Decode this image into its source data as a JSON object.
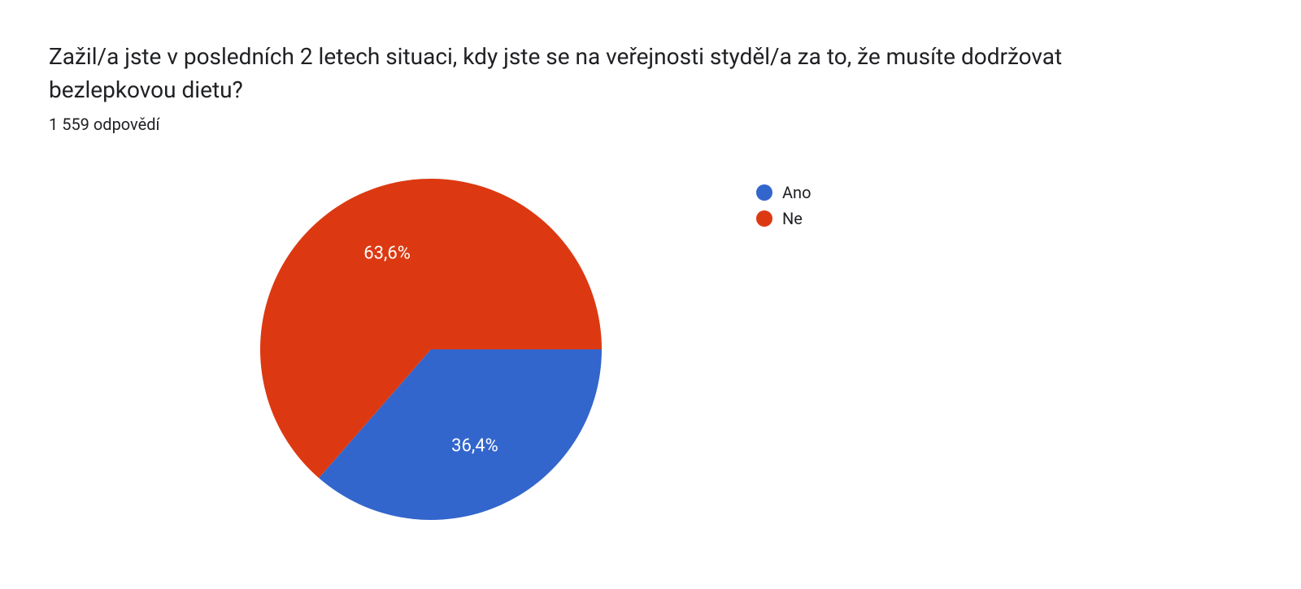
{
  "title": "Zažil/a jste v posledních 2 letech situaci, kdy jste se na veřejnosti styděl/a za to, že musíte dodržovat bezlepkovou dietu?",
  "subtitle": "1 559 odpovědí",
  "chart": {
    "type": "pie",
    "background_color": "#ffffff",
    "slices": [
      {
        "label": "Ano",
        "value": 36.4,
        "display": "36,4%",
        "color": "#3366cc"
      },
      {
        "label": "Ne",
        "value": 63.6,
        "display": "63,6%",
        "color": "#dc3912"
      }
    ],
    "radius": 210,
    "label_fontsize": 22,
    "label_color": "#ffffff",
    "title_fontsize": 28,
    "subtitle_fontsize": 20,
    "legend_fontsize": 20,
    "text_color": "#202124"
  }
}
